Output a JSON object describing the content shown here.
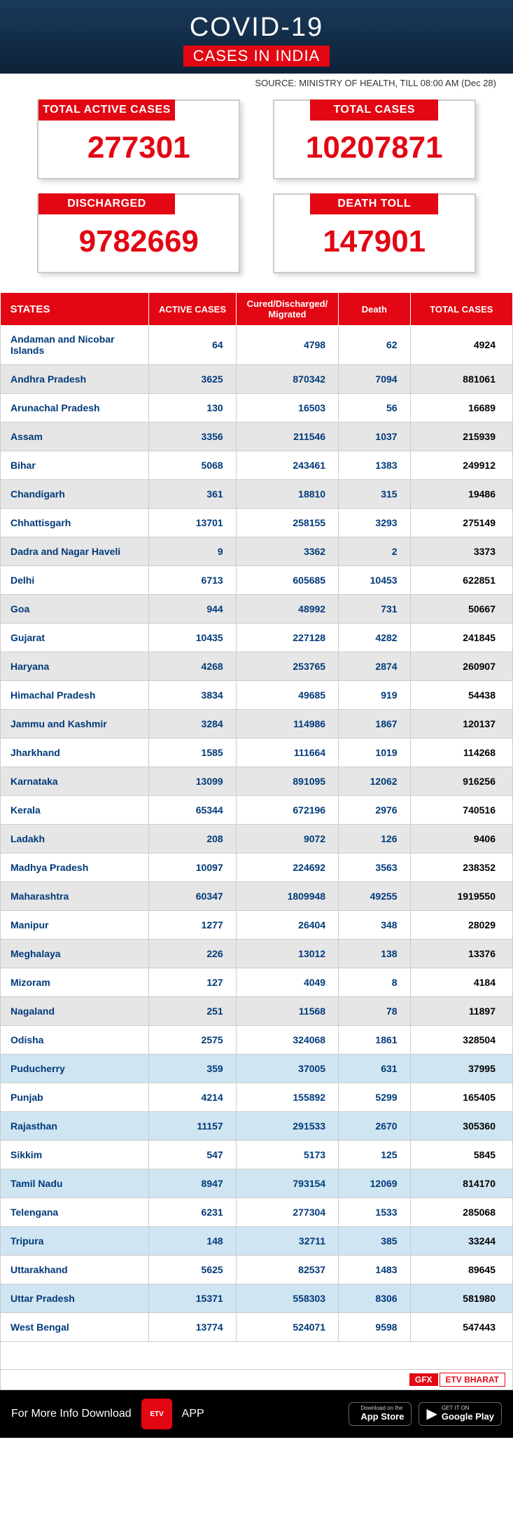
{
  "header": {
    "title": "COVID-19",
    "subtitle": "CASES IN INDIA"
  },
  "source": "SOURCE: MINISTRY OF HEALTH, TILL 08:00 AM (Dec 28)",
  "cards": [
    {
      "label": "TOTAL ACTIVE CASES",
      "value": "277301"
    },
    {
      "label": "TOTAL CASES",
      "value": "10207871"
    },
    {
      "label": "DISCHARGED",
      "value": "9782669"
    },
    {
      "label": "DEATH TOLL",
      "value": "147901"
    }
  ],
  "table": {
    "columns": [
      "STATES",
      "ACTIVE CASES",
      "Cured/Discharged/\nMigrated",
      "Death",
      "TOTAL CASES"
    ],
    "rows": [
      {
        "state": "Andaman and Nicobar Islands",
        "active": "64",
        "cured": "4798",
        "death": "62",
        "total": "4924",
        "alt": ""
      },
      {
        "state": "Andhra Pradesh",
        "active": "3625",
        "cured": "870342",
        "death": "7094",
        "total": "881061",
        "alt": "grey"
      },
      {
        "state": "Arunachal Pradesh",
        "active": "130",
        "cured": "16503",
        "death": "56",
        "total": "16689",
        "alt": ""
      },
      {
        "state": "Assam",
        "active": "3356",
        "cured": "211546",
        "death": "1037",
        "total": "215939",
        "alt": "grey"
      },
      {
        "state": "Bihar",
        "active": "5068",
        "cured": "243461",
        "death": "1383",
        "total": "249912",
        "alt": ""
      },
      {
        "state": "Chandigarh",
        "active": "361",
        "cured": "18810",
        "death": "315",
        "total": "19486",
        "alt": "grey"
      },
      {
        "state": "Chhattisgarh",
        "active": "13701",
        "cured": "258155",
        "death": "3293",
        "total": "275149",
        "alt": ""
      },
      {
        "state": "Dadra and Nagar Haveli",
        "active": "9",
        "cured": "3362",
        "death": "2",
        "total": "3373",
        "alt": "grey"
      },
      {
        "state": "Delhi",
        "active": "6713",
        "cured": "605685",
        "death": "10453",
        "total": "622851",
        "alt": ""
      },
      {
        "state": "Goa",
        "active": "944",
        "cured": "48992",
        "death": "731",
        "total": "50667",
        "alt": "grey"
      },
      {
        "state": "Gujarat",
        "active": "10435",
        "cured": "227128",
        "death": "4282",
        "total": "241845",
        "alt": ""
      },
      {
        "state": "Haryana",
        "active": "4268",
        "cured": "253765",
        "death": "2874",
        "total": "260907",
        "alt": "grey"
      },
      {
        "state": "Himachal Pradesh",
        "active": "3834",
        "cured": "49685",
        "death": "919",
        "total": "54438",
        "alt": ""
      },
      {
        "state": "Jammu and Kashmir",
        "active": "3284",
        "cured": "114986",
        "death": "1867",
        "total": "120137",
        "alt": "grey"
      },
      {
        "state": "Jharkhand",
        "active": "1585",
        "cured": "111664",
        "death": "1019",
        "total": "114268",
        "alt": ""
      },
      {
        "state": "Karnataka",
        "active": "13099",
        "cured": "891095",
        "death": "12062",
        "total": "916256",
        "alt": "grey"
      },
      {
        "state": "Kerala",
        "active": "65344",
        "cured": "672196",
        "death": "2976",
        "total": "740516",
        "alt": ""
      },
      {
        "state": "Ladakh",
        "active": "208",
        "cured": "9072",
        "death": "126",
        "total": "9406",
        "alt": "grey"
      },
      {
        "state": "Madhya Pradesh",
        "active": "10097",
        "cured": "224692",
        "death": "3563",
        "total": "238352",
        "alt": ""
      },
      {
        "state": "Maharashtra",
        "active": "60347",
        "cured": "1809948",
        "death": "49255",
        "total": "1919550",
        "alt": "grey"
      },
      {
        "state": "Manipur",
        "active": "1277",
        "cured": "26404",
        "death": "348",
        "total": "28029",
        "alt": ""
      },
      {
        "state": "Meghalaya",
        "active": "226",
        "cured": "13012",
        "death": "138",
        "total": "13376",
        "alt": "grey"
      },
      {
        "state": "Mizoram",
        "active": "127",
        "cured": "4049",
        "death": "8",
        "total": "4184",
        "alt": ""
      },
      {
        "state": "Nagaland",
        "active": "251",
        "cured": "11568",
        "death": "78",
        "total": "11897",
        "alt": "grey"
      },
      {
        "state": "Odisha",
        "active": "2575",
        "cured": "324068",
        "death": "1861",
        "total": "328504",
        "alt": ""
      },
      {
        "state": "Puducherry",
        "active": "359",
        "cured": "37005",
        "death": "631",
        "total": "37995",
        "alt": "blue"
      },
      {
        "state": "Punjab",
        "active": "4214",
        "cured": "155892",
        "death": "5299",
        "total": "165405",
        "alt": ""
      },
      {
        "state": "Rajasthan",
        "active": "11157",
        "cured": "291533",
        "death": "2670",
        "total": "305360",
        "alt": "blue"
      },
      {
        "state": "Sikkim",
        "active": "547",
        "cured": "5173",
        "death": "125",
        "total": "5845",
        "alt": ""
      },
      {
        "state": "Tamil Nadu",
        "active": "8947",
        "cured": "793154",
        "death": "12069",
        "total": "814170",
        "alt": "blue"
      },
      {
        "state": "Telengana",
        "active": "6231",
        "cured": "277304",
        "death": "1533",
        "total": "285068",
        "alt": ""
      },
      {
        "state": "Tripura",
        "active": "148",
        "cured": "32711",
        "death": "385",
        "total": "33244",
        "alt": "blue"
      },
      {
        "state": "Uttarakhand",
        "active": "5625",
        "cured": "82537",
        "death": "1483",
        "total": "89645",
        "alt": ""
      },
      {
        "state": "Uttar Pradesh",
        "active": "15371",
        "cured": "558303",
        "death": "8306",
        "total": "581980",
        "alt": "blue"
      },
      {
        "state": "West Bengal",
        "active": "13774",
        "cured": "524071",
        "death": "9598",
        "total": "547443",
        "alt": ""
      }
    ]
  },
  "gfx": {
    "gfx": "GFX",
    "etv": "ETV BHARAT"
  },
  "footer": {
    "text": "For More Info Download",
    "app": "APP",
    "logo": "ETV",
    "apple": {
      "t1": "Download on the",
      "t2": "App Store"
    },
    "google": {
      "t1": "GET IT ON",
      "t2": "Google Play"
    }
  },
  "style": {
    "colors": {
      "red": "#e30613",
      "navy": "#003a7a",
      "header_bg": "#14314d",
      "grey_row": "#e6e6e6",
      "blue_row": "#cfe5f2",
      "border": "#cccccc"
    }
  }
}
